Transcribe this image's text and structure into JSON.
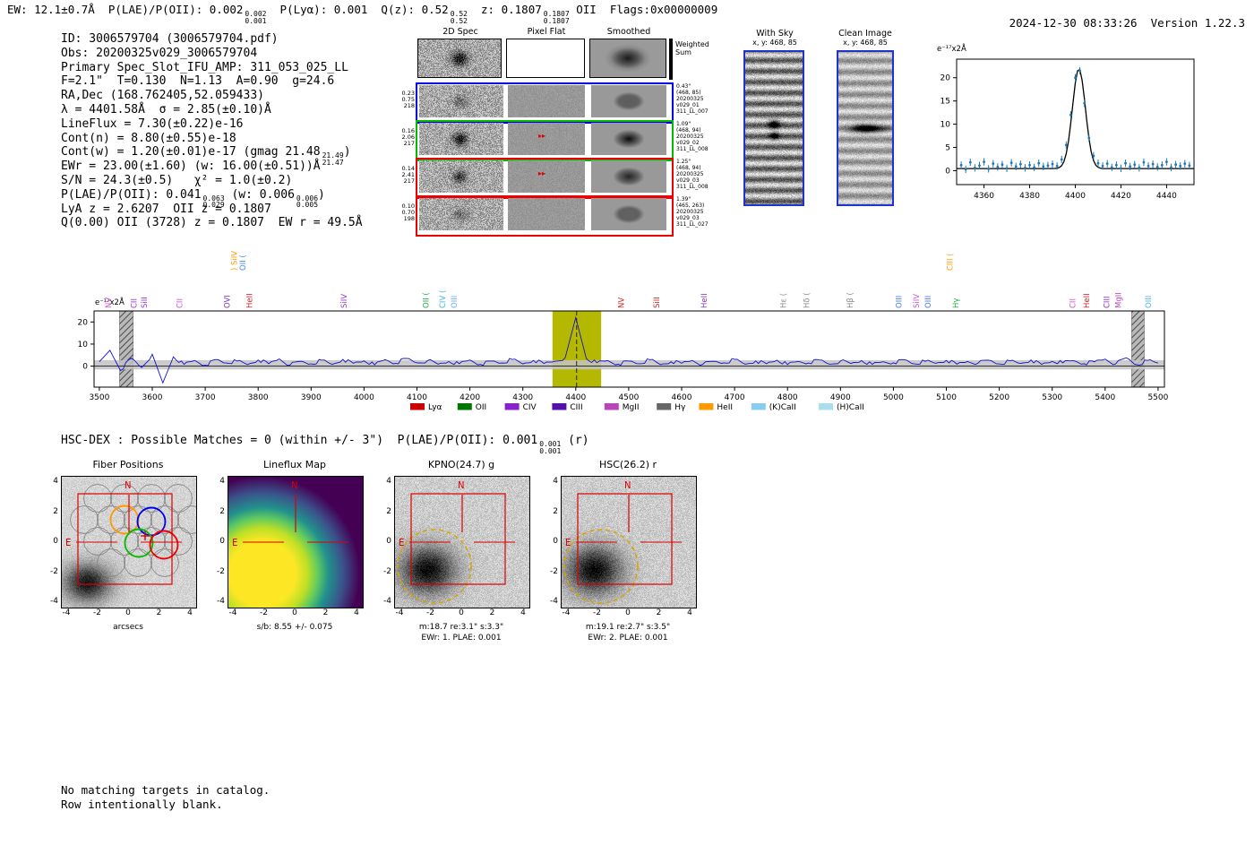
{
  "header": {
    "segments": [
      {
        "t": "EW: 12.1±0.7Å  P(LAE)/P(OII): 0.002"
      },
      {
        "hi": "0.002",
        "lo": "0.001"
      },
      {
        "t": "  P(Lyα): 0.001  Q(z): 0.52"
      },
      {
        "hi": "0.52",
        "lo": "0.52"
      },
      {
        "t": "  z: 0.1807"
      },
      {
        "hi": "0.1807",
        "lo": "0.1807"
      },
      {
        "t": " OII  Flags:0x00000009"
      }
    ],
    "datetime": "2024-12-30 08:33:26",
    "version": "Version 1.22.3"
  },
  "info": {
    "lines": [
      [
        {
          "t": "ID: 3006579704 (3006579704.pdf)"
        }
      ],
      [
        {
          "t": "Obs: 20200325v029_3006579704"
        }
      ],
      [
        {
          "t": "Primary Spec_Slot_IFU_AMP: 311_053_025_LL"
        }
      ],
      [
        {
          "t": "F=2.1\"  T=0.130  N=1.13  A=0.90  g=24.6"
        }
      ],
      [
        {
          "t": "RA,Dec (168.762405,52.059433)"
        }
      ],
      [
        {
          "t": "λ = 4401.58Å  σ = 2.85(±0.10)Å"
        }
      ],
      [
        {
          "t": "LineFlux = 7.30(±0.22)e-16"
        }
      ],
      [
        {
          "t": "Cont(n) = 8.80(±0.55)e-18"
        }
      ],
      [
        {
          "t": "Cont(w) = 1.20(±0.01)e-17 (gmag 21.48"
        },
        {
          "hi": "21.49",
          "lo": "21.47"
        },
        {
          "t": ")"
        }
      ],
      [
        {
          "t": "EWr = 23.00(±1.60) (w: 16.00(±0.51))Å"
        }
      ],
      [
        {
          "t": "S/N = 24.3(±0.5)   χ² = 1.0(±0.2)"
        }
      ],
      [
        {
          "t": "P(LAE)/P(OII): 0.041"
        },
        {
          "hi": "0.063",
          "lo": "0.029"
        },
        {
          "t": " (w: 0.006"
        },
        {
          "hi": "0.006",
          "lo": "0.005"
        },
        {
          "t": ")"
        }
      ],
      [
        {
          "t": "LyA z = 2.6207  OII z = 0.1807"
        }
      ],
      [
        {
          "t": "Q(0.00) OII (3728) z = 0.1807  EW r = 49.5Å"
        }
      ]
    ]
  },
  "spec2d": {
    "col_headers": [
      "2D Spec",
      "Pixel Flat",
      "Smoothed"
    ],
    "weighted_sum_label": "Weighted Sum",
    "rows": [
      {
        "weights": [
          "0.23",
          "0.75",
          "218"
        ],
        "color": "#0000ee",
        "dist": "0.43\"",
        "coords": "(468, 85)",
        "date": "20200325",
        "obs": "v029_01",
        "amp": "311_LL_007",
        "blob": 60,
        "flat_mark": false
      },
      {
        "weights": [
          "0.16",
          "2.06",
          "217"
        ],
        "color": "#00bb00",
        "dist": "1.09\"",
        "coords": "(468, 94)",
        "date": "20200325",
        "obs": "v029_02",
        "amp": "311_LL_008",
        "blob": 150,
        "flat_mark": true
      },
      {
        "weights": [
          "0.14",
          "2.41",
          "217"
        ],
        "color": "#ee0000",
        "dist": "1.25\"",
        "coords": "(468, 94)",
        "date": "20200325",
        "obs": "v029_03",
        "amp": "311_LL_008",
        "blob": 115,
        "flat_mark": true
      },
      {
        "weights": [
          "0.10",
          "0.70",
          "198"
        ],
        "color": "#ee0000",
        "dist": "1.39\"",
        "coords": "(465, 263)",
        "date": "20200325",
        "obs": "v029_03",
        "amp": "311_LL_027",
        "blob": 55,
        "flat_mark": false
      }
    ]
  },
  "sky_panels": {
    "with_sky": {
      "title": "With Sky",
      "coords": "x, y: 468, 85"
    },
    "clean": {
      "title": "Clean Image",
      "coords": "x, y: 468, 85"
    }
  },
  "hsc_line": {
    "segments": [
      {
        "t": "HSC-DEX : Possible Matches = 0 (within +/- 3\")  P(LAE)/P(OII): 0.001"
      },
      {
        "hi": "0.001",
        "lo": "0.001"
      },
      {
        "t": " (r)"
      }
    ]
  },
  "cutouts": {
    "tick_labels_y": [
      "4",
      "2",
      "0",
      "-2",
      "-4"
    ],
    "tick_labels_x": [
      "-4",
      "-2",
      "0",
      "2",
      "4"
    ],
    "north_label": "N",
    "east_label": "E",
    "fiber_colors": [
      "#ff9900",
      "#0000ee",
      "#00bb00",
      "#ee0000"
    ],
    "panels": [
      {
        "title": "Fiber Positions",
        "caption1": "arcsecs",
        "caption2": "",
        "type": "fibers"
      },
      {
        "title": "Lineflux Map",
        "caption1": "s/b: 8.55 +/- 0.075",
        "caption2": "",
        "type": "viridis"
      },
      {
        "title": "KPNO(24.7) g",
        "caption1": "m:18.7 re:3.1\" s:3.3\"",
        "caption2": "EWr: 1. PLAE: 0.001",
        "type": "gray"
      },
      {
        "title": "HSC(26.2) r",
        "caption1": "m:19.1 re:2.7\" s:3.5\"",
        "caption2": "EWr: 2. PLAE: 0.001",
        "type": "gray"
      }
    ]
  },
  "footer": {
    "line1": "No matching targets in catalog.",
    "line2": "Row intentionally blank."
  },
  "chart_data": [
    {
      "type": "line",
      "name": "emission-line-fit-inset",
      "title": "",
      "xlabel": "",
      "ylabel": "e⁻¹⁷x2Å",
      "xlim": [
        4348,
        4452
      ],
      "ylim": [
        -3,
        24
      ],
      "x_ticks": [
        4360,
        4380,
        4400,
        4420,
        4440
      ],
      "y_ticks": [
        0,
        5,
        10,
        15,
        20
      ],
      "fit": {
        "center": 4401.58,
        "sigma": 2.85,
        "amplitude": 21.5,
        "baseline": 0.45
      },
      "fit_color": "#000000",
      "point_color": "#1f77b4",
      "point_err": 0.8,
      "points_x": [
        4350,
        4352,
        4354,
        4356,
        4358,
        4360,
        4362,
        4364,
        4366,
        4368,
        4370,
        4372,
        4374,
        4376,
        4378,
        4380,
        4382,
        4384,
        4386,
        4388,
        4390,
        4392,
        4394,
        4396,
        4398,
        4400,
        4402,
        4404,
        4406,
        4408,
        4410,
        4412,
        4414,
        4416,
        4418,
        4420,
        4422,
        4424,
        4426,
        4428,
        4430,
        4432,
        4434,
        4436,
        4438,
        4440,
        4442,
        4444,
        4446,
        4448,
        4450
      ],
      "points_y": [
        1.2,
        0.3,
        1.8,
        0.6,
        1.1,
        1.9,
        0.4,
        1.5,
        0.8,
        1.3,
        0.5,
        1.7,
        0.9,
        1.4,
        0.6,
        1.2,
        0.7,
        1.6,
        0.9,
        1.1,
        1.4,
        1.0,
        2.4,
        5.5,
        12.0,
        20.0,
        21.5,
        14.5,
        7.0,
        3.2,
        1.6,
        1.0,
        1.5,
        0.7,
        1.2,
        0.5,
        1.6,
        0.9,
        1.3,
        0.6,
        1.8,
        1.0,
        1.4,
        0.8,
        1.2,
        1.9,
        0.7,
        1.3,
        1.0,
        1.5,
        1.1
      ]
    },
    {
      "type": "line",
      "name": "full-spectrum",
      "title": "",
      "xlabel": "",
      "ylabel": "e⁻¹⁷x2Å",
      "xlim": [
        3490,
        5512
      ],
      "ylim": [
        -9.5,
        25
      ],
      "x_ticks": [
        3500,
        3600,
        3700,
        3800,
        3900,
        4000,
        4100,
        4200,
        4300,
        4400,
        4500,
        4600,
        4700,
        4800,
        4900,
        5000,
        5100,
        5200,
        5300,
        5400,
        5500
      ],
      "y_ticks": [
        0,
        10,
        20
      ],
      "x_start": 3500,
      "x_step": 20,
      "line_color": "#1111cc",
      "values": [
        2.0,
        7.2,
        -2.0,
        3.6,
        -0.6,
        5.4,
        -7.6,
        4.2,
        0.8,
        2.6,
        0.4,
        3.0,
        1.4,
        2.3,
        0.7,
        2.8,
        1.1,
        3.3,
        0.5,
        2.2,
        1.0,
        2.7,
        0.8,
        3.1,
        1.3,
        2.4,
        0.6,
        2.9,
        1.2,
        3.5,
        1.5,
        2.5,
        0.9,
        2.1,
        1.1,
        2.8,
        0.8,
        2.3,
        1.4,
        3.0,
        1.0,
        2.6,
        1.2,
        2.2,
        3.8,
        22.0,
        3.4,
        1.6,
        2.5,
        0.9,
        2.3,
        1.1,
        2.9,
        0.7,
        2.0,
        1.3,
        2.6,
        0.8,
        2.2,
        1.5,
        3.1,
        0.9,
        2.4,
        1.1,
        2.7,
        0.7,
        2.1,
        1.4,
        2.8,
        0.9,
        2.3,
        1.2,
        2.5,
        0.8,
        2.0,
        1.5,
        2.9,
        1.0,
        2.2,
        1.3,
        2.6,
        0.9,
        2.1,
        1.4,
        2.7,
        1.0,
        2.4,
        1.2,
        2.8,
        0.8,
        2.2,
        1.5,
        2.5,
        1.1,
        2.0,
        3.2,
        1.0,
        3.8,
        0.6,
        2.6,
        1.4
      ],
      "highlight_band": {
        "x0": 4356,
        "x1": 4448,
        "color": "#b5b800"
      },
      "masked_bands": [
        {
          "x0": 3538,
          "x1": 3564
        },
        {
          "x0": 5450,
          "x1": 5474
        }
      ],
      "dashed_line_x": 4401.58,
      "err_band": {
        "low": -1.5,
        "high": 2.7,
        "color": "#c2c2c2"
      },
      "line_labels": [
        {
          "wl": 3522,
          "text": "NV",
          "color": "#cc55cc",
          "level": 0
        },
        {
          "wl": 3570,
          "text": "CII",
          "color": "#9933cc",
          "level": 0
        },
        {
          "wl": 3590,
          "text": "SiII",
          "color": "#9933cc",
          "level": 0
        },
        {
          "wl": 3657,
          "text": "CII",
          "color": "#cc55cc",
          "level": 0
        },
        {
          "wl": 3746,
          "text": "OVI",
          "color": "#7733bb",
          "level": 0
        },
        {
          "wl": 3760,
          "text": ") SiIV",
          "color": "#ff9900",
          "level": 1
        },
        {
          "wl": 3776,
          "text": "OII (",
          "color": "#4488ee",
          "level": 1
        },
        {
          "wl": 3789,
          "text": "HeII",
          "color": "#cc2222",
          "level": 0
        },
        {
          "wl": 3967,
          "text": "SiIV",
          "color": "#9933cc",
          "level": 0
        },
        {
          "wl": 4122,
          "text": "OII (",
          "color": "#22aa44",
          "level": 0
        },
        {
          "wl": 4153,
          "text": "CIV (",
          "color": "#33bbdd",
          "level": 0
        },
        {
          "wl": 4175,
          "text": "OIII",
          "color": "#66aaff",
          "level": 0
        },
        {
          "wl": 4491,
          "text": "NV",
          "color": "#cc2222",
          "level": 0
        },
        {
          "wl": 4558,
          "text": "SiII",
          "color": "#cc2222",
          "level": 0
        },
        {
          "wl": 4647,
          "text": "HeII",
          "color": "#8833bb",
          "level": 0
        },
        {
          "wl": 4797,
          "text": "Hε (",
          "color": "#888888",
          "level": 0
        },
        {
          "wl": 4841,
          "text": "Hδ (",
          "color": "#888888",
          "level": 0
        },
        {
          "wl": 4923,
          "text": "Hβ (",
          "color": "#888888",
          "level": 0
        },
        {
          "wl": 5015,
          "text": "OIII",
          "color": "#4477ff",
          "level": 0
        },
        {
          "wl": 5048,
          "text": "SiIV",
          "color": "#cc55cc",
          "level": 0
        },
        {
          "wl": 5070,
          "text": "OIII",
          "color": "#4477ff",
          "level": 0
        },
        {
          "wl": 5112,
          "text": "CIII (",
          "color": "#ff9900",
          "level": 1
        },
        {
          "wl": 5123,
          "text": "Hγ",
          "color": "#22aa44",
          "level": 0
        },
        {
          "wl": 5344,
          "text": "CII",
          "color": "#cc55cc",
          "level": 0
        },
        {
          "wl": 5370,
          "text": "HeII",
          "color": "#cc2222",
          "level": 0
        },
        {
          "wl": 5408,
          "text": "CIII",
          "color": "#8833bb",
          "level": 0
        },
        {
          "wl": 5430,
          "text": "MgII",
          "color": "#bb44bb",
          "level": 0
        },
        {
          "wl": 5487,
          "text": "OIII",
          "color": "#44bbdd",
          "level": 0
        }
      ],
      "legend": [
        {
          "label": "Lyα",
          "color": "#cc0000"
        },
        {
          "label": "OII",
          "color": "#007700"
        },
        {
          "label": "CIV",
          "color": "#8822cc"
        },
        {
          "label": "CIII",
          "color": "#5511aa"
        },
        {
          "label": "MgII",
          "color": "#bb44bb"
        },
        {
          "label": "Hγ",
          "color": "#666666"
        },
        {
          "label": "HeII",
          "color": "#ff9900"
        },
        {
          "label": "(K)CaII",
          "color": "#88ccee"
        },
        {
          "label": "(H)CaII",
          "color": "#aaddee"
        }
      ]
    }
  ]
}
